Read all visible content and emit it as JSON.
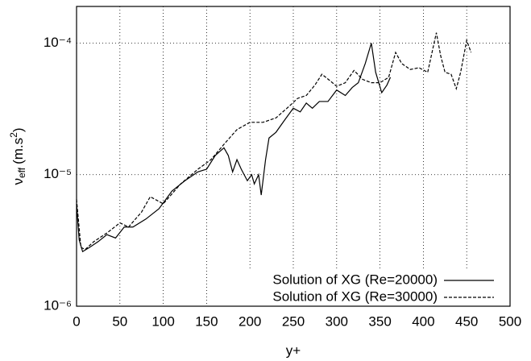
{
  "chart_data": {
    "type": "line",
    "xlabel": "y+",
    "ylabel": {
      "symbol": "ν",
      "subscript": "eff",
      "unit": "(m.s",
      "superscript": "2",
      "close": ")"
    },
    "xlim": [
      0,
      500
    ],
    "xticks": [
      0,
      50,
      100,
      150,
      200,
      250,
      300,
      350,
      400,
      450,
      500
    ],
    "ylim": [
      1e-06,
      0.00019
    ],
    "yticks": [
      {
        "value": 1e-06,
        "label": "10⁻⁶"
      },
      {
        "value": 1e-05,
        "label": "10⁻⁵"
      },
      {
        "value": 0.0001,
        "label": "10⁻⁴"
      }
    ],
    "log_y": true,
    "grid": true,
    "legend": "bottom-right",
    "series": [
      {
        "name": "Solution of XG (Re=20000)",
        "color": "#000000",
        "dash": "solid",
        "x": [
          0,
          3,
          7,
          15,
          25,
          35,
          45,
          55,
          65,
          80,
          95,
          110,
          125,
          140,
          150,
          160,
          170,
          175,
          180,
          185,
          190,
          197,
          202,
          205,
          210,
          213,
          218,
          222,
          230,
          240,
          250,
          258,
          265,
          272,
          280,
          290,
          300,
          310,
          318,
          325,
          333,
          340,
          345,
          352,
          358,
          362
        ],
        "values": [
          6e-06,
          3.2e-06,
          2.6e-06,
          2.8e-06,
          3.1e-06,
          3.5e-06,
          3.3e-06,
          4e-06,
          4e-06,
          4.6e-06,
          5.5e-06,
          7.5e-06,
          9e-06,
          1.05e-05,
          1.1e-05,
          1.4e-05,
          1.6e-05,
          1.4e-05,
          1.05e-05,
          1.3e-05,
          1.1e-05,
          9e-06,
          1e-05,
          8.5e-06,
          1e-05,
          7e-06,
          1.3e-05,
          1.9e-05,
          2.1e-05,
          2.6e-05,
          3.2e-05,
          3e-05,
          3.5e-05,
          3.2e-05,
          3.6e-05,
          3.6e-05,
          4.4e-05,
          4e-05,
          4.6e-05,
          5e-05,
          7e-05,
          0.0001,
          6e-05,
          4.2e-05,
          4.8e-05,
          5.5e-05
        ]
      },
      {
        "name": "Solution of XG (Re=30000)",
        "color": "#000000",
        "dash": "dashed",
        "x": [
          0,
          5,
          10,
          20,
          35,
          50,
          60,
          75,
          85,
          100,
          120,
          140,
          155,
          170,
          185,
          200,
          215,
          230,
          245,
          255,
          265,
          275,
          283,
          292,
          300,
          310,
          320,
          330,
          340,
          350,
          360,
          368,
          375,
          385,
          395,
          405,
          415,
          420,
          425,
          432,
          438,
          443,
          450,
          455
        ],
        "values": [
          6.5e-06,
          2.8e-06,
          2.7e-06,
          3.1e-06,
          3.6e-06,
          4.3e-06,
          4e-06,
          5.2e-06,
          6.8e-06,
          6e-06,
          8.5e-06,
          1.1e-05,
          1.3e-05,
          1.7e-05,
          2.2e-05,
          2.5e-05,
          2.5e-05,
          2.7e-05,
          3.3e-05,
          3.8e-05,
          4e-05,
          4.8e-05,
          5.8e-05,
          5.2e-05,
          4.7e-05,
          5e-05,
          6.2e-05,
          5.3e-05,
          5e-05,
          5e-05,
          5.5e-05,
          8.5e-05,
          7e-05,
          6.3e-05,
          6.5e-05,
          6e-05,
          0.00012,
          8e-05,
          6e-05,
          5.8e-05,
          4.5e-05,
          6e-05,
          0.000105,
          8.5e-05
        ]
      }
    ]
  }
}
